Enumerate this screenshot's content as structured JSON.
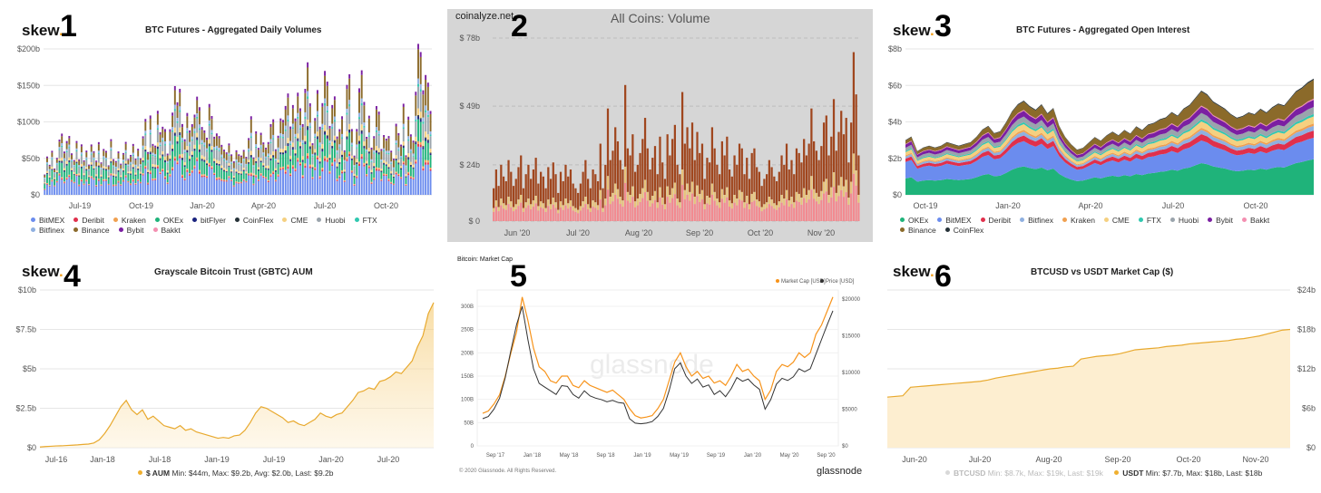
{
  "chart_data": [
    {
      "id": 1,
      "type": "bar",
      "panel_number": "1",
      "logo": "skew",
      "title": "BTC Futures - Aggregated Daily Volumes",
      "yticks": [
        "$0",
        "$50b",
        "$100b",
        "$150b",
        "$200b"
      ],
      "ylim": [
        0,
        200
      ],
      "xticks": [
        "Jul-19",
        "Oct-19",
        "Jan-20",
        "Apr-20",
        "Jul-20",
        "Oct-20"
      ],
      "legend_placement": "bottom",
      "series": [
        {
          "name": "BitMEX",
          "color": "#6b8cee"
        },
        {
          "name": "Deribit",
          "color": "#e0304c"
        },
        {
          "name": "Kraken",
          "color": "#f0a050"
        },
        {
          "name": "OKEx",
          "color": "#1fb37a"
        },
        {
          "name": "bitFlyer",
          "color": "#1a237e"
        },
        {
          "name": "CoinFlex",
          "color": "#263238"
        },
        {
          "name": "CME",
          "color": "#f5d080"
        },
        {
          "name": "Huobi",
          "color": "#9aa4ac"
        },
        {
          "name": "FTX",
          "color": "#30c8b0"
        },
        {
          "name": "Bitfinex",
          "color": "#8fb0e0"
        },
        {
          "name": "Binance",
          "color": "#8b6a2a"
        },
        {
          "name": "Bybit",
          "color": "#7b1fa2"
        },
        {
          "name": "Bakkt",
          "color": "#f48fb1"
        }
      ],
      "totals": [
        30,
        55,
        42,
        60,
        35,
        48,
        70,
        90,
        62,
        75,
        80,
        55,
        45,
        68,
        52,
        72,
        48,
        60,
        40,
        65,
        55,
        50,
        75,
        45,
        62,
        58,
        38,
        70,
        52,
        48,
        60,
        42,
        55,
        68,
        45,
        58,
        72,
        50,
        62,
        48,
        75,
        95,
        62,
        112,
        70,
        66,
        110,
        80,
        85,
        95,
        58,
        90,
        110,
        142,
        118,
        132,
        102,
        78,
        112,
        86,
        92,
        102,
        122,
        126,
        95,
        88,
        76,
        118,
        100,
        72,
        88,
        82,
        68,
        60,
        55,
        65,
        50,
        48,
        62,
        55,
        52,
        58,
        48,
        70,
        112,
        52,
        86,
        62,
        80,
        66,
        58,
        75,
        98,
        102,
        60,
        76,
        96,
        92,
        126,
        140,
        92,
        118,
        98,
        128,
        106,
        100,
        146,
        178,
        120,
        66,
        96,
        128,
        96,
        126,
        166,
        148,
        88,
        112,
        120,
        82,
        90,
        105,
        58,
        140,
        150,
        80,
        55,
        90,
        142,
        162,
        118,
        72,
        96,
        66,
        80,
        118,
        108,
        58,
        74,
        68,
        82,
        60,
        48,
        92,
        78,
        62,
        110,
        55,
        106,
        80,
        70,
        130,
        186,
        172,
        145,
        162,
        148,
        108
      ]
    },
    {
      "id": 2,
      "type": "bar",
      "panel_number": "2",
      "watermark": "coinalyze.net",
      "title": "All Coins: Volume",
      "yticks": [
        "$ 0",
        "$ 24b",
        "$ 49b",
        "$ 78b"
      ],
      "ylim": [
        0,
        78
      ],
      "xticks": [
        "Jun '20",
        "Jul '20",
        "Aug '20",
        "Sep '20",
        "Oct '20",
        "Nov '20"
      ],
      "values": [
        14,
        22,
        15,
        24,
        19,
        17,
        26,
        21,
        15,
        18,
        23,
        28,
        14,
        20,
        24,
        18,
        22,
        27,
        16,
        21,
        19,
        14,
        23,
        18,
        25,
        20,
        12,
        21,
        17,
        24,
        19,
        22,
        16,
        14,
        12,
        16,
        21,
        26,
        18,
        14,
        22,
        20,
        17,
        33,
        14,
        24,
        48,
        26,
        30,
        40,
        34,
        26,
        22,
        58,
        31,
        28,
        37,
        21,
        24,
        29,
        35,
        44,
        31,
        22,
        27,
        32,
        20,
        36,
        25,
        18,
        37,
        28,
        35,
        41,
        24,
        20,
        55,
        33,
        40,
        31,
        42,
        26,
        38,
        29,
        33,
        18,
        27,
        25,
        40,
        31,
        24,
        20,
        34,
        28,
        36,
        22,
        19,
        28,
        24,
        33,
        31,
        20,
        27,
        18,
        29,
        31,
        23,
        21,
        15,
        18,
        20,
        26,
        23,
        19,
        17,
        21,
        28,
        24,
        33,
        22,
        26,
        20,
        31,
        29,
        25,
        35,
        28,
        33,
        48,
        34,
        30,
        26,
        32,
        42,
        45,
        28,
        36,
        52,
        30,
        38,
        47,
        37,
        44,
        25,
        42,
        72,
        54,
        28
      ]
    },
    {
      "id": 3,
      "type": "area",
      "panel_number": "3",
      "logo": "skew",
      "title": "BTC Futures - Aggregated Open Interest",
      "yticks": [
        "$0",
        "$2b",
        "$4b",
        "$6b",
        "$8b"
      ],
      "ylim": [
        0,
        8
      ],
      "xticks": [
        "Oct-19",
        "Jan-20",
        "Apr-20",
        "Jul-20",
        "Oct-20"
      ],
      "legend_placement": "bottom",
      "series": [
        {
          "name": "OKEx",
          "color": "#1fb37a"
        },
        {
          "name": "BitMEX",
          "color": "#6b8cee"
        },
        {
          "name": "Deribit",
          "color": "#e0304c"
        },
        {
          "name": "Bitfinex",
          "color": "#8fb0e0"
        },
        {
          "name": "Kraken",
          "color": "#f0a050"
        },
        {
          "name": "CME",
          "color": "#f5d080"
        },
        {
          "name": "FTX",
          "color": "#30c8b0"
        },
        {
          "name": "Huobi",
          "color": "#9aa4ac"
        },
        {
          "name": "Bybit",
          "color": "#7b1fa2"
        },
        {
          "name": "Bakkt",
          "color": "#f48fb1"
        },
        {
          "name": "Binance",
          "color": "#8b6a2a"
        },
        {
          "name": "CoinFlex",
          "color": "#263238"
        }
      ],
      "totals": [
        3.0,
        3.2,
        2.4,
        2.6,
        2.7,
        2.6,
        2.7,
        2.9,
        2.8,
        2.7,
        2.8,
        2.9,
        3.2,
        3.6,
        3.8,
        3.4,
        3.5,
        4.0,
        4.6,
        5.0,
        5.2,
        4.9,
        4.7,
        5.0,
        4.5,
        4.8,
        3.8,
        3.2,
        2.8,
        2.5,
        2.6,
        2.9,
        3.2,
        3.0,
        3.3,
        3.5,
        3.3,
        3.6,
        3.4,
        3.8,
        3.6,
        3.9,
        4.0,
        4.2,
        4.3,
        4.6,
        4.4,
        4.8,
        5.0,
        5.4,
        5.8,
        5.6,
        5.2,
        5.0,
        4.8,
        4.5,
        4.3,
        4.4,
        4.6,
        4.5,
        4.8,
        4.6,
        4.9,
        5.1,
        5.0,
        5.4,
        5.8,
        6.0,
        6.3,
        6.5
      ]
    },
    {
      "id": 4,
      "type": "area",
      "panel_number": "4",
      "logo": "skew",
      "title": "Grayscale Bitcoin Trust (GBTC) AUM",
      "yticks": [
        "$0",
        "$2.5b",
        "$5b",
        "$7.5b",
        "$10b"
      ],
      "ylim": [
        0,
        10
      ],
      "xticks": [
        "Jul-16",
        "Jan-18",
        "Jul-18",
        "Jan-19",
        "Jul-19",
        "Jan-20",
        "Jul-20"
      ],
      "legend": "$ AUM",
      "legend_stats": "Min: $44m, Max: $9.2b, Avg: $2.0b, Last: $9.2b",
      "values": [
        0.044,
        0.07,
        0.09,
        0.11,
        0.12,
        0.14,
        0.16,
        0.18,
        0.21,
        0.23,
        0.3,
        0.5,
        0.9,
        1.4,
        2.0,
        2.6,
        3.0,
        2.4,
        2.1,
        2.4,
        1.8,
        2.0,
        1.7,
        1.4,
        1.3,
        1.2,
        1.4,
        1.1,
        1.2,
        1.0,
        0.9,
        0.8,
        0.7,
        0.6,
        0.65,
        0.6,
        0.75,
        0.8,
        1.1,
        1.6,
        2.2,
        2.6,
        2.5,
        2.3,
        2.1,
        1.9,
        1.6,
        1.7,
        1.5,
        1.4,
        1.6,
        1.8,
        2.2,
        2.0,
        1.9,
        2.1,
        2.2,
        2.6,
        3.0,
        3.5,
        3.6,
        3.8,
        3.7,
        4.2,
        4.3,
        4.5,
        4.8,
        4.7,
        5.1,
        5.5,
        6.4,
        7.1,
        8.5,
        9.2
      ]
    },
    {
      "id": 5,
      "type": "line",
      "panel_number": "5",
      "watermark": "glassnode",
      "title": "Bitcoin: Market Cap",
      "legend": [
        "Market Cap [USD]",
        "Price [USD]"
      ],
      "left_ticks": [
        "300B",
        "250B",
        "200B",
        "150B",
        "100B",
        "50B",
        "0"
      ],
      "right_ticks": [
        "$20000",
        "$15000",
        "$10000",
        "$5000",
        "$0"
      ],
      "xticks": [
        "Sep '17",
        "Jan '18",
        "May '18",
        "Sep '18",
        "Jan '19",
        "May '19",
        "Sep '19",
        "Jan '20",
        "May '20",
        "Sep '20"
      ],
      "copyright": "© 2020 Glassnode. All Rights Reserved.",
      "brand": "glassnode",
      "series": [
        {
          "name": "Market Cap [USD]",
          "color": "#f7931a",
          "values": [
            70,
            75,
            90,
            110,
            150,
            200,
            245,
            320,
            270,
            210,
            170,
            160,
            140,
            135,
            150,
            150,
            130,
            125,
            140,
            130,
            125,
            120,
            115,
            120,
            110,
            100,
            80,
            65,
            60,
            62,
            65,
            80,
            100,
            140,
            180,
            200,
            170,
            150,
            160,
            145,
            150,
            135,
            140,
            130,
            150,
            175,
            160,
            165,
            150,
            140,
            100,
            120,
            160,
            175,
            170,
            180,
            200,
            190,
            200,
            240,
            260,
            290,
            320
          ]
        },
        {
          "name": "Price [USD]",
          "color": "#333333",
          "values": [
            4200,
            4500,
            5500,
            7000,
            9800,
            13500,
            17000,
            19500,
            15000,
            11000,
            9000,
            8500,
            8000,
            7500,
            8700,
            8600,
            7500,
            7000,
            8000,
            7300,
            7000,
            6800,
            6500,
            6700,
            6400,
            6300,
            4200,
            3600,
            3500,
            3600,
            3800,
            4500,
            5600,
            8000,
            11000,
            11800,
            10000,
            9000,
            9600,
            8500,
            8800,
            7500,
            8000,
            7200,
            8300,
            9800,
            9300,
            9600,
            8800,
            8200,
            5500,
            6800,
            8900,
            9700,
            9400,
            9900,
            11000,
            10600,
            11000,
            13000,
            15000,
            17000,
            18900
          ]
        }
      ]
    },
    {
      "id": 6,
      "type": "area",
      "panel_number": "6",
      "logo": "skew",
      "title": "BTCUSD vs USDT Market Cap ($)",
      "yticks": [
        "$0",
        "$6b",
        "$12b",
        "$18b",
        "$24b"
      ],
      "ylim": [
        0,
        24
      ],
      "xticks": [
        "Jun-20",
        "Jul-20",
        "Aug-20",
        "Sep-20",
        "Oct-20",
        "Nov-20"
      ],
      "legend": [
        {
          "name": "BTCUSD",
          "stats": "Min: $8.7k, Max: $19k, Last: $19k",
          "color": "#d8d8d8"
        },
        {
          "name": "USDT",
          "stats": "Min: $7.7b, Max: $18b, Last: $18b",
          "color": "#f0b030"
        }
      ],
      "values": [
        7.7,
        7.8,
        7.9,
        9.2,
        9.3,
        9.4,
        9.5,
        9.6,
        9.7,
        9.8,
        9.9,
        10.0,
        10.1,
        10.3,
        10.6,
        10.8,
        11.0,
        11.2,
        11.4,
        11.6,
        11.8,
        12.0,
        12.1,
        12.3,
        12.4,
        13.5,
        13.7,
        13.9,
        14.0,
        14.1,
        14.3,
        14.6,
        14.9,
        15.0,
        15.1,
        15.2,
        15.4,
        15.5,
        15.6,
        15.8,
        15.9,
        16.0,
        16.1,
        16.2,
        16.3,
        16.5,
        16.6,
        16.8,
        17.0,
        17.3,
        17.6,
        17.9,
        18.0
      ]
    }
  ]
}
